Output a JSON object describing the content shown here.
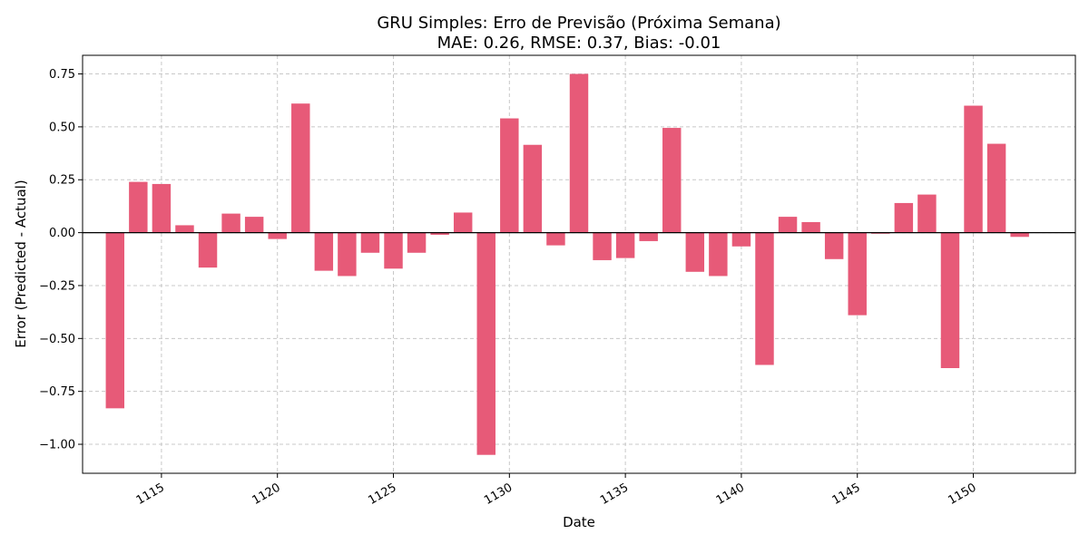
{
  "chart_data": {
    "type": "bar",
    "title_line1": "GRU Simples: Erro de Previsão (Próxima Semana)",
    "title_line2": "MAE: 0.26, RMSE: 0.37, Bias: -0.01",
    "xlabel": "Date",
    "ylabel": "Error (Predicted - Actual)",
    "xlim": [
      1111.6,
      1154.4
    ],
    "ylim": [
      -1.137,
      0.838
    ],
    "grid": true,
    "bar_color": "#e75a78",
    "zero_line_color": "#000000",
    "x_ticks": [
      1115,
      1120,
      1125,
      1130,
      1135,
      1140,
      1145,
      1150
    ],
    "y_ticks": [
      0.75,
      0.5,
      0.25,
      0.0,
      -0.25,
      -0.5,
      -0.75,
      -1.0
    ],
    "y_tick_labels": [
      "0.75",
      "0.50",
      "0.25",
      "0.00",
      "−0.25",
      "−0.50",
      "−0.75",
      "−1.00"
    ],
    "x": [
      1113,
      1114,
      1115,
      1116,
      1117,
      1118,
      1119,
      1120,
      1121,
      1122,
      1123,
      1124,
      1125,
      1126,
      1127,
      1128,
      1129,
      1130,
      1131,
      1132,
      1133,
      1134,
      1135,
      1136,
      1137,
      1138,
      1139,
      1140,
      1141,
      1142,
      1143,
      1144,
      1145,
      1146,
      1147,
      1148,
      1149,
      1150,
      1151,
      1152
    ],
    "values": [
      -0.83,
      0.24,
      0.23,
      0.035,
      -0.165,
      0.09,
      0.075,
      -0.03,
      0.61,
      -0.18,
      -0.205,
      -0.095,
      -0.17,
      -0.095,
      -0.01,
      0.095,
      -1.05,
      0.54,
      0.415,
      -0.06,
      0.75,
      -0.13,
      -0.12,
      -0.04,
      0.495,
      -0.185,
      -0.205,
      -0.065,
      -0.625,
      0.075,
      0.05,
      -0.125,
      -0.39,
      -0.005,
      0.14,
      0.18,
      -0.64,
      0.6,
      0.42,
      -0.02
    ]
  }
}
